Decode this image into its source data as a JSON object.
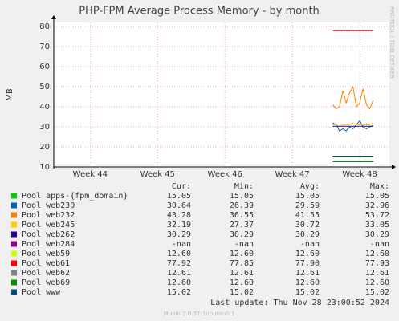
{
  "chart_data": {
    "type": "line",
    "title": "PHP-FPM Average Process Memory - by month",
    "y_label": "MB",
    "side_text": "RRDTOOL / TOBI OETIKER",
    "xlim": [
      43.46,
      48.44
    ],
    "xticks": [
      {
        "value": 44,
        "label": "Week 44"
      },
      {
        "value": 45,
        "label": "Week 45"
      },
      {
        "value": 46,
        "label": "Week 46"
      },
      {
        "value": 47,
        "label": "Week 47"
      },
      {
        "value": 48,
        "label": "Week 48"
      }
    ],
    "ylim": [
      10,
      82
    ],
    "yticks": [
      10,
      20,
      30,
      40,
      50,
      60,
      70,
      80
    ],
    "grid": true,
    "x": [
      47.6,
      47.65,
      47.7,
      47.75,
      47.8,
      47.85,
      47.9,
      47.95,
      48.0,
      48.05,
      48.1,
      48.15,
      48.2
    ],
    "stat_headers": [
      "Cur:",
      "Min:",
      "Avg:",
      "Max:"
    ],
    "series": [
      {
        "name": "Pool apps-{fpm_domain}",
        "color": "#00cc00",
        "values": [
          15.05,
          15.05,
          15.05,
          15.05,
          15.05,
          15.05,
          15.05,
          15.05,
          15.05,
          15.05,
          15.05,
          15.05,
          15.05
        ],
        "stats": [
          "15.05",
          "15.05",
          "15.05",
          "15.05"
        ]
      },
      {
        "name": "Pool web230",
        "color": "#0066b3",
        "values": [
          32,
          31,
          28,
          29,
          28,
          30,
          29,
          31,
          33,
          30,
          29,
          30,
          30.64
        ],
        "stats": [
          "30.64",
          "26.39",
          "29.59",
          "32.96"
        ]
      },
      {
        "name": "Pool web232",
        "color": "#ff8000",
        "values": [
          41,
          39,
          40,
          48,
          42,
          47,
          50,
          40,
          42,
          49,
          41,
          39,
          43.28
        ],
        "stats": [
          "43.28",
          "36.55",
          "41.55",
          "53.72"
        ]
      },
      {
        "name": "Pool web245",
        "color": "#ffcc00",
        "values": [
          31,
          31,
          30,
          31,
          31,
          31,
          32,
          31,
          31,
          31,
          31,
          31,
          32.19
        ],
        "stats": [
          "32.19",
          "27.37",
          "30.72",
          "33.05"
        ]
      },
      {
        "name": "Pool web262",
        "color": "#330099",
        "values": [
          30.29,
          30.29,
          30.29,
          30.29,
          30.29,
          30.29,
          30.29,
          30.29,
          30.29,
          30.29,
          30.29,
          30.29,
          30.29
        ],
        "stats": [
          "30.29",
          "30.29",
          "30.29",
          "30.29"
        ]
      },
      {
        "name": "Pool web284",
        "color": "#990099",
        "values": [
          null,
          null,
          null,
          null,
          null,
          null,
          null,
          null,
          null,
          null,
          null,
          null,
          null
        ],
        "stats": [
          "-nan",
          "-nan",
          "-nan",
          "-nan"
        ]
      },
      {
        "name": "Pool web59",
        "color": "#ccff00",
        "values": [
          12.6,
          12.6,
          12.6,
          12.6,
          12.6,
          12.6,
          12.6,
          12.6,
          12.6,
          12.6,
          12.6,
          12.6,
          12.6
        ],
        "stats": [
          "12.60",
          "12.60",
          "12.60",
          "12.60"
        ]
      },
      {
        "name": "Pool web61",
        "color": "#ff0000",
        "values": [
          77.9,
          77.9,
          77.9,
          77.9,
          77.9,
          77.9,
          77.9,
          77.9,
          77.9,
          77.9,
          77.9,
          77.9,
          77.92
        ],
        "stats": [
          "77.92",
          "77.85",
          "77.90",
          "77.93"
        ]
      },
      {
        "name": "Pool web62",
        "color": "#808080",
        "values": [
          12.61,
          12.61,
          12.61,
          12.61,
          12.61,
          12.61,
          12.61,
          12.61,
          12.61,
          12.61,
          12.61,
          12.61,
          12.61
        ],
        "stats": [
          "12.61",
          "12.61",
          "12.61",
          "12.61"
        ]
      },
      {
        "name": "Pool web69",
        "color": "#008f00",
        "values": [
          12.6,
          12.6,
          12.6,
          12.6,
          12.6,
          12.6,
          12.6,
          12.6,
          12.6,
          12.6,
          12.6,
          12.6,
          12.6
        ],
        "stats": [
          "12.60",
          "12.60",
          "12.60",
          "12.60"
        ]
      },
      {
        "name": "Pool www",
        "color": "#00487d",
        "values": [
          15.02,
          15.02,
          15.02,
          15.02,
          15.02,
          15.02,
          15.02,
          15.02,
          15.02,
          15.02,
          15.02,
          15.02,
          15.02
        ],
        "stats": [
          "15.02",
          "15.02",
          "15.02",
          "15.02"
        ]
      }
    ],
    "last_update": "Last update: Thu Nov 28 23:00:52 2024",
    "footer": "Munin 2.0.37-1ubuntu0.1"
  }
}
